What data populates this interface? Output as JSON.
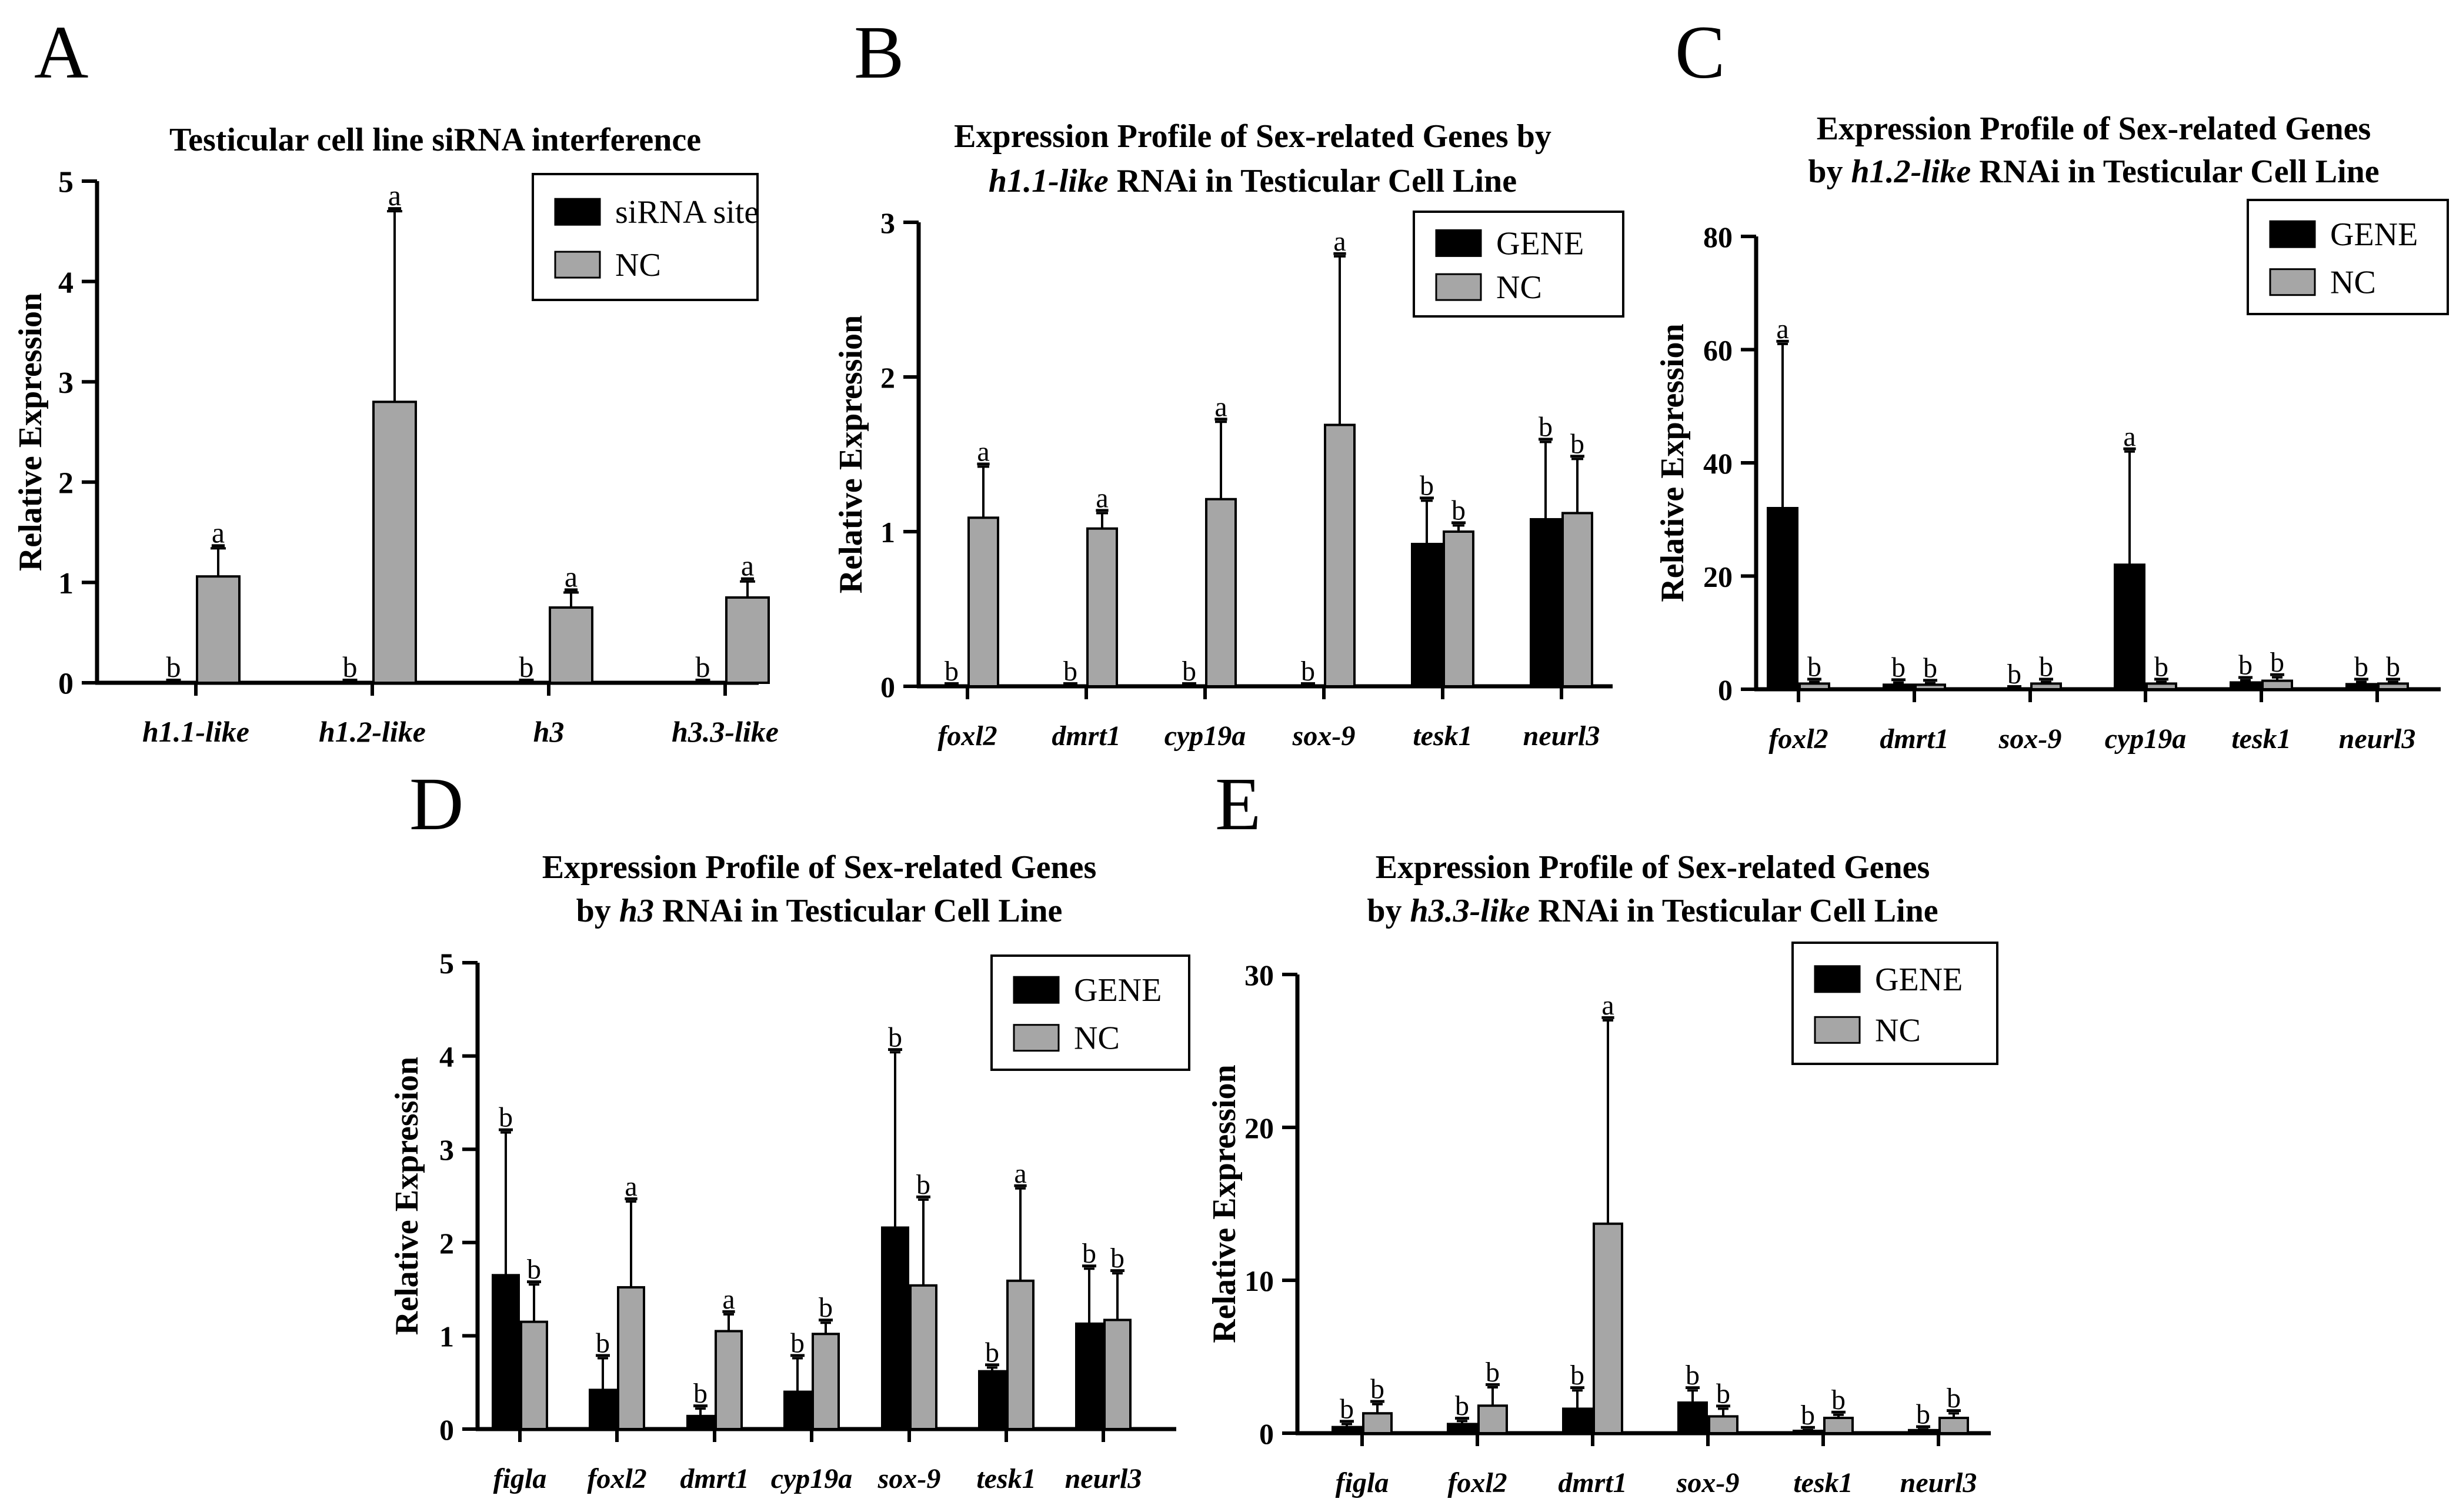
{
  "chart_data": [
    {
      "panel_label": "A",
      "type": "bar",
      "title_lines": [
        [
          {
            "t": "Testicular cell line siRNA interference",
            "i": false
          }
        ]
      ],
      "ylabel": "Relative Expression",
      "ylim": [
        0,
        5
      ],
      "yticks": [
        0,
        1,
        2,
        3,
        4,
        5
      ],
      "categories": [
        "h1.1-like",
        "h1.2-like",
        "h3",
        "h3.3-like"
      ],
      "legend_position": "top-right",
      "series": [
        {
          "name": "siRNA site",
          "color": "#000000",
          "values": [
            0,
            0,
            0,
            0
          ],
          "errors": [
            0,
            0,
            0,
            0
          ],
          "labels": [
            "b",
            "b",
            "b",
            "b"
          ]
        },
        {
          "name": "NC",
          "color": "#a6a6a6",
          "values": [
            1.06,
            2.8,
            0.75,
            0.85
          ],
          "errors": [
            0.28,
            1.9,
            0.15,
            0.16
          ],
          "labels": [
            "a",
            "a",
            "a",
            "a"
          ]
        }
      ]
    },
    {
      "panel_label": "B",
      "type": "bar",
      "title_lines": [
        [
          {
            "t": "Expression Profile of Sex-related Genes by",
            "i": false
          }
        ],
        [
          {
            "t": "h1.1-like",
            "i": true
          },
          {
            "t": " RNAi in Testicular Cell Line",
            "i": false
          }
        ]
      ],
      "ylabel": "Relative Expression",
      "ylim": [
        0,
        3
      ],
      "yticks": [
        0,
        1,
        2,
        3
      ],
      "categories": [
        "foxl2",
        "dmrt1",
        "cyp19a",
        "sox-9",
        "tesk1",
        "neurl3"
      ],
      "legend_position": "top-right",
      "series": [
        {
          "name": "GENE",
          "color": "#000000",
          "values": [
            0,
            0,
            0,
            0,
            0.92,
            1.08
          ],
          "errors": [
            0,
            0,
            0,
            0,
            0.28,
            0.5
          ],
          "labels": [
            "b",
            "b",
            "b",
            "b",
            "b",
            "b"
          ]
        },
        {
          "name": "NC",
          "color": "#a6a6a6",
          "values": [
            1.09,
            1.02,
            1.21,
            1.69,
            1.0,
            1.12
          ],
          "errors": [
            0.33,
            0.1,
            0.5,
            1.09,
            0.04,
            0.35
          ],
          "labels": [
            "a",
            "a",
            "a",
            "a",
            "b",
            "b"
          ]
        }
      ]
    },
    {
      "panel_label": "C",
      "type": "bar",
      "title_lines": [
        [
          {
            "t": "Expression Profile of Sex-related Genes",
            "i": false
          }
        ],
        [
          {
            "t": "by ",
            "i": false
          },
          {
            "t": "h1.2-like",
            "i": true
          },
          {
            "t": " RNAi in Testicular Cell Line",
            "i": false
          }
        ]
      ],
      "ylabel": "Relative Expression",
      "ylim": [
        0,
        80
      ],
      "yticks": [
        0,
        20,
        40,
        60,
        80
      ],
      "categories": [
        "foxl2",
        "dmrt1",
        "sox-9",
        "cyp19a",
        "tesk1",
        "neurl3"
      ],
      "legend_position": "top-right",
      "series": [
        {
          "name": "GENE",
          "color": "#000000",
          "values": [
            32,
            0.8,
            0,
            22,
            1.2,
            0.9
          ],
          "errors": [
            29,
            0.4,
            0,
            20,
            0.4,
            0.4
          ],
          "labels": [
            "a",
            "b",
            "b",
            "a",
            "b",
            "b"
          ]
        },
        {
          "name": "NC",
          "color": "#a6a6a6",
          "values": [
            1.0,
            0.8,
            1.0,
            1.0,
            1.5,
            1.0
          ],
          "errors": [
            0.3,
            0.3,
            0.3,
            0.3,
            0.6,
            0.3
          ],
          "labels": [
            "b",
            "b",
            "b",
            "b",
            "b",
            "b"
          ]
        }
      ]
    },
    {
      "panel_label": "D",
      "type": "bar",
      "title_lines": [
        [
          {
            "t": "Expression Profile of Sex-related Genes",
            "i": false
          }
        ],
        [
          {
            "t": "by ",
            "i": false
          },
          {
            "t": "h3",
            "i": true
          },
          {
            "t": " RNAi in Testicular Cell Line",
            "i": false
          }
        ]
      ],
      "ylabel": "Relative Expression",
      "ylim": [
        0,
        5
      ],
      "yticks": [
        0,
        1,
        2,
        3,
        4,
        5
      ],
      "categories": [
        "figla",
        "foxl2",
        "dmrt1",
        "cyp19a",
        "sox-9",
        "tesk1",
        "neurl3"
      ],
      "legend_position": "top-right",
      "series": [
        {
          "name": "GENE",
          "color": "#000000",
          "values": [
            1.65,
            0.42,
            0.14,
            0.4,
            2.16,
            0.62,
            1.13
          ],
          "errors": [
            1.53,
            0.34,
            0.08,
            0.36,
            1.88,
            0.04,
            0.59
          ],
          "labels": [
            "b",
            "b",
            "b",
            "b",
            "b",
            "b",
            "b"
          ]
        },
        {
          "name": "NC",
          "color": "#a6a6a6",
          "values": [
            1.15,
            1.52,
            1.05,
            1.02,
            1.54,
            1.59,
            1.17
          ],
          "errors": [
            0.4,
            0.92,
            0.18,
            0.12,
            0.92,
            0.99,
            0.5
          ],
          "labels": [
            "b",
            "a",
            "a",
            "b",
            "b",
            "a",
            "b"
          ]
        }
      ]
    },
    {
      "panel_label": "E",
      "type": "bar",
      "title_lines": [
        [
          {
            "t": "Expression Profile of Sex-related Genes",
            "i": false
          }
        ],
        [
          {
            "t": "by ",
            "i": false
          },
          {
            "t": "h3.3-like",
            "i": true
          },
          {
            "t": " RNAi in Testicular Cell Line",
            "i": false
          }
        ]
      ],
      "ylabel": "Relative Expression",
      "ylim": [
        0,
        30
      ],
      "yticks": [
        0,
        10,
        20,
        30
      ],
      "categories": [
        "figla",
        "foxl2",
        "dmrt1",
        "sox-9",
        "tesk1",
        "neurl3"
      ],
      "legend_position": "top-right",
      "series": [
        {
          "name": "GENE",
          "color": "#000000",
          "values": [
            0.4,
            0.6,
            1.6,
            2.0,
            0.15,
            0.2
          ],
          "errors": [
            0.2,
            0.2,
            1.2,
            0.8,
            0.05,
            0.05
          ],
          "labels": [
            "b",
            "b",
            "b",
            "b",
            "b",
            "b"
          ]
        },
        {
          "name": "NC",
          "color": "#a6a6a6",
          "values": [
            1.3,
            1.8,
            13.7,
            1.1,
            1.0,
            1.0
          ],
          "errors": [
            0.6,
            1.2,
            13.3,
            0.5,
            0.2,
            0.3
          ],
          "labels": [
            "b",
            "b",
            "a",
            "b",
            "b",
            "b"
          ]
        }
      ]
    }
  ]
}
